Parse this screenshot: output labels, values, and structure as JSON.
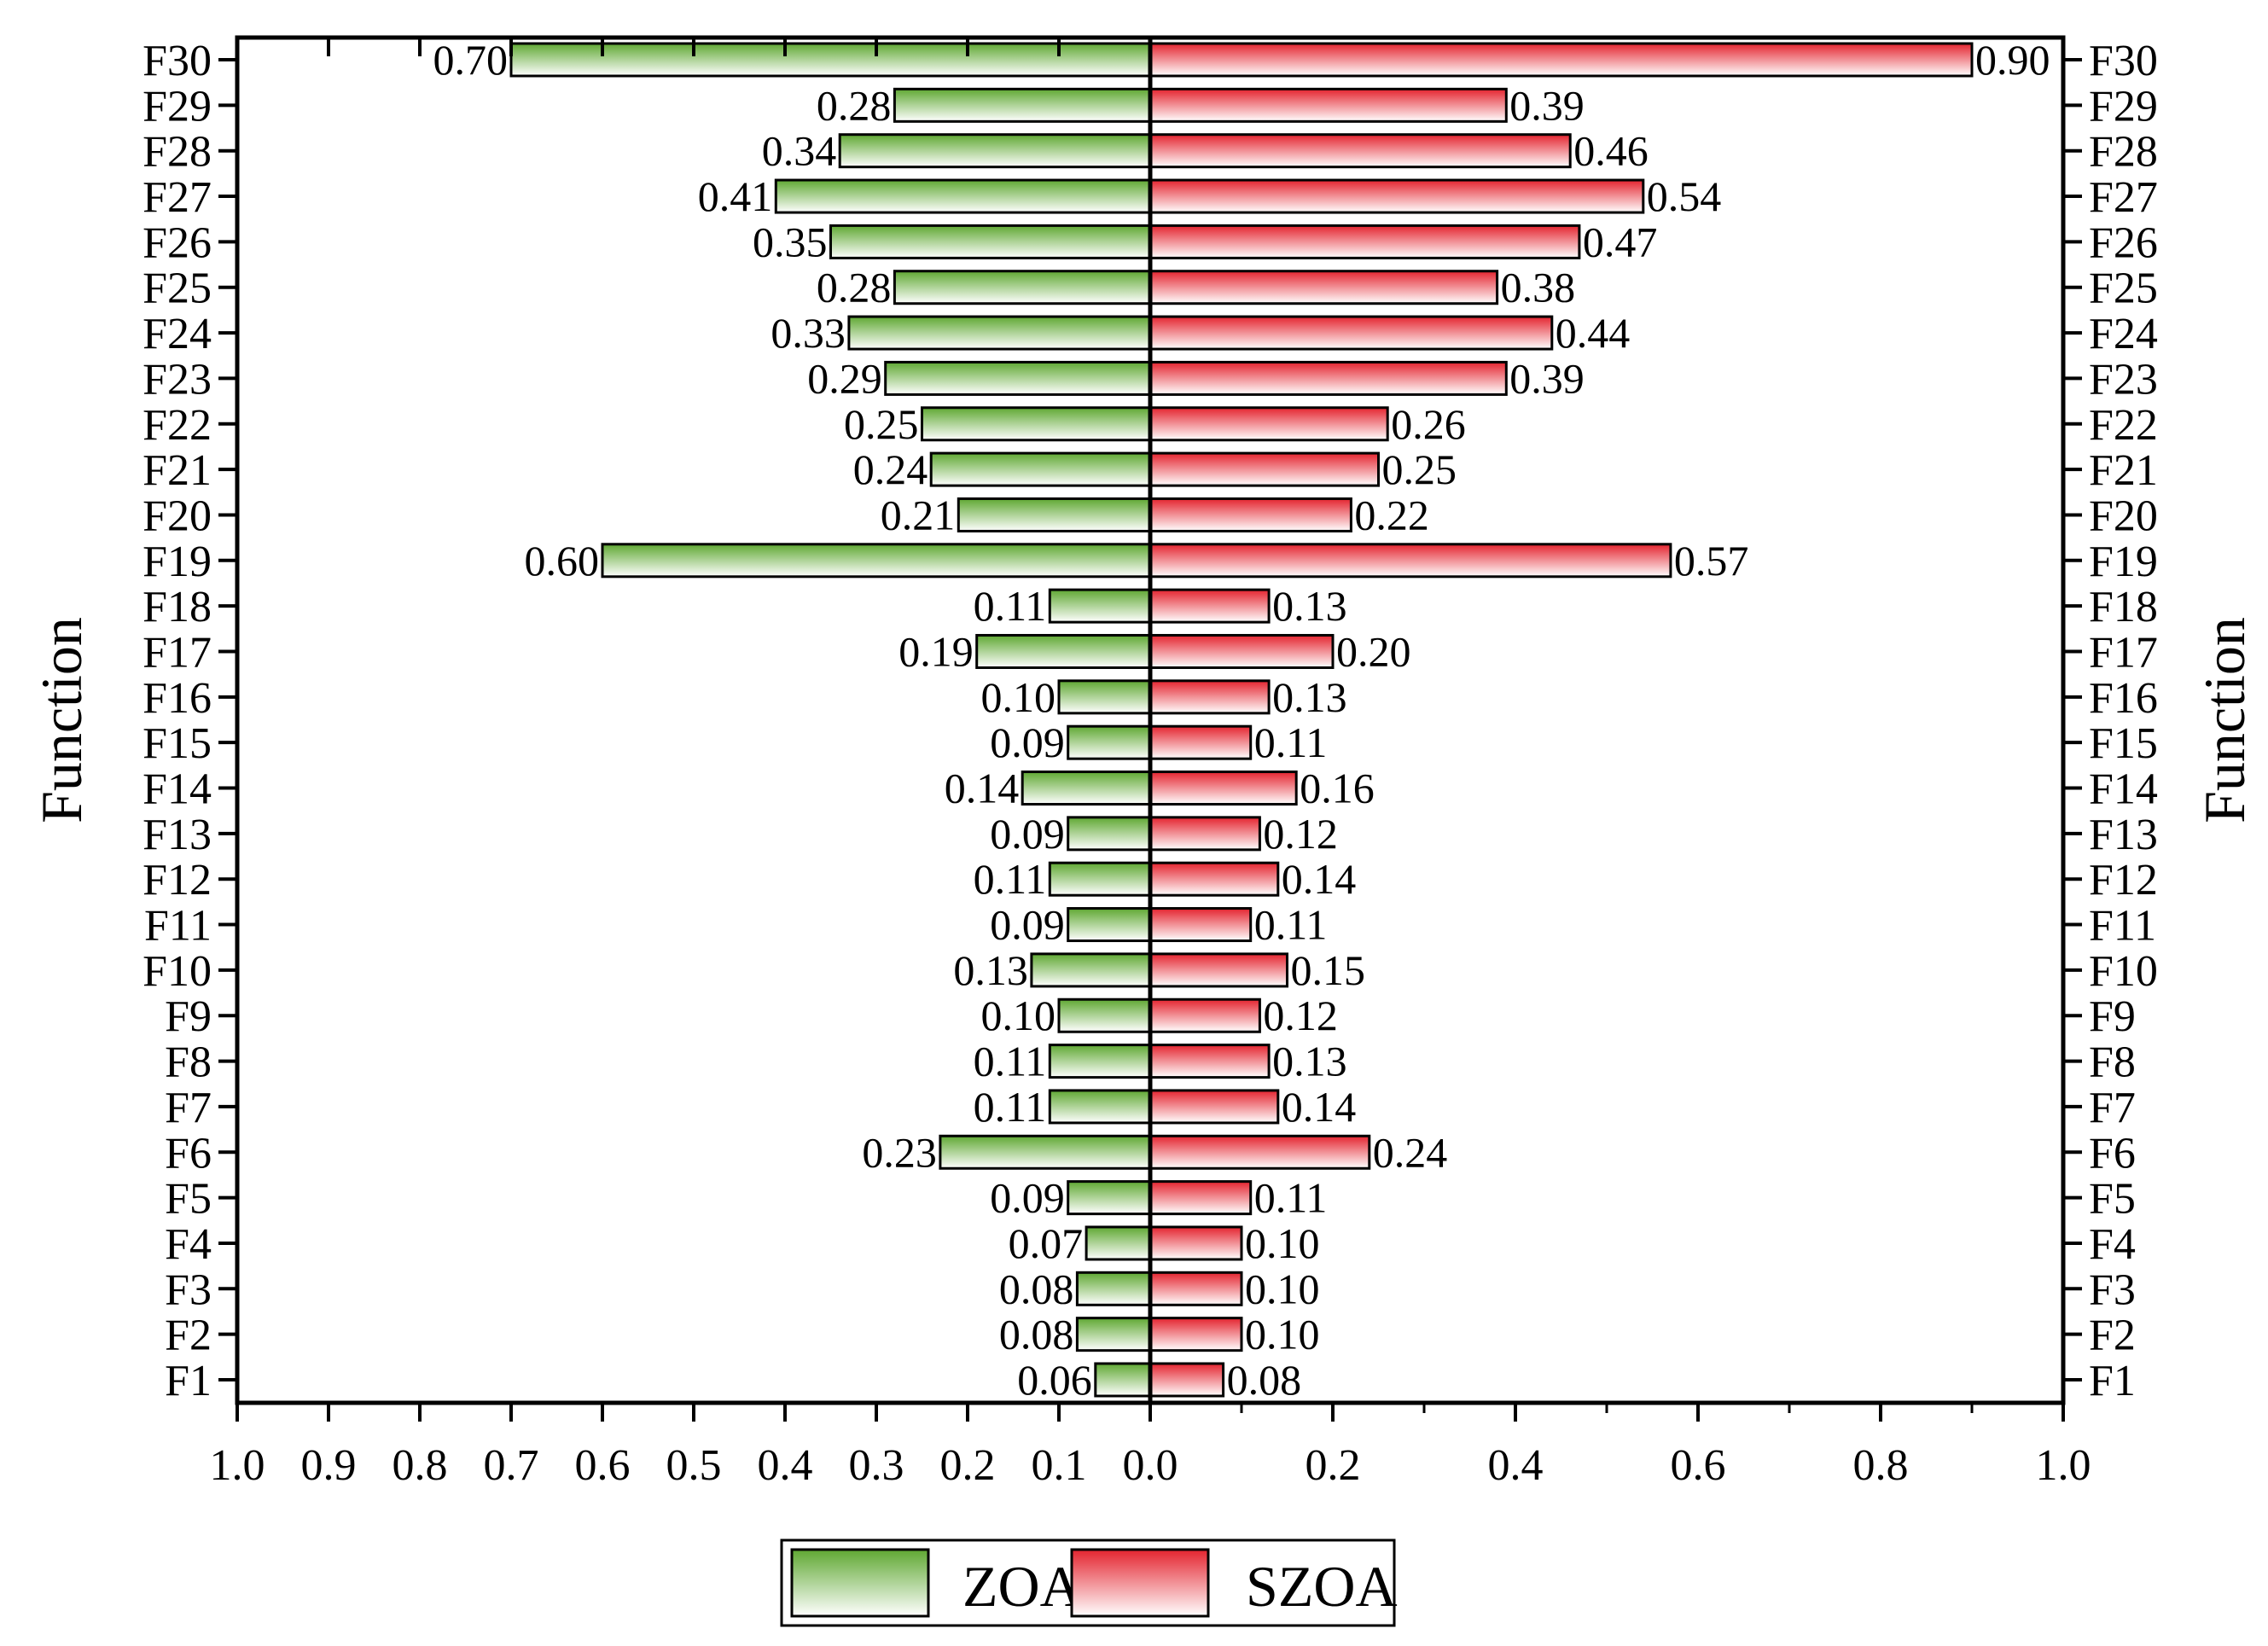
{
  "chart_data": {
    "type": "bar",
    "orientation": "horizontal-diverging",
    "ylabel_left": "Function",
    "ylabel_right": "Function",
    "categories": [
      "F1",
      "F2",
      "F3",
      "F4",
      "F5",
      "F6",
      "F7",
      "F8",
      "F9",
      "F10",
      "F11",
      "F12",
      "F13",
      "F14",
      "F15",
      "F16",
      "F17",
      "F18",
      "F19",
      "F20",
      "F21",
      "F22",
      "F23",
      "F24",
      "F25",
      "F26",
      "F27",
      "F28",
      "F29",
      "F30"
    ],
    "series": [
      {
        "name": "ZOA",
        "side": "left",
        "color_top": "#5fa832",
        "color_bottom": "#ffffff",
        "values": [
          0.06,
          0.08,
          0.08,
          0.07,
          0.09,
          0.23,
          0.11,
          0.11,
          0.1,
          0.13,
          0.09,
          0.11,
          0.09,
          0.14,
          0.09,
          0.1,
          0.19,
          0.11,
          0.6,
          0.21,
          0.24,
          0.25,
          0.29,
          0.33,
          0.28,
          0.35,
          0.41,
          0.34,
          0.28,
          0.7
        ],
        "labels": [
          "0.06",
          "0.08",
          "0.08",
          "0.07",
          "0.09",
          "0.23",
          "0.11",
          "0.11",
          "0.10",
          "0.13",
          "0.09",
          "0.11",
          "0.09",
          "0.14",
          "0.09",
          "0.10",
          "0.19",
          "0.11",
          "0.60",
          "0.21",
          "0.24",
          "0.25",
          "0.29",
          "0.33",
          "0.28",
          "0.35",
          "0.41",
          "0.34",
          "0.28",
          "0.70"
        ]
      },
      {
        "name": "SZOA",
        "side": "right",
        "color_top": "#e4242f",
        "color_bottom": "#ffffff",
        "values": [
          0.08,
          0.1,
          0.1,
          0.1,
          0.11,
          0.24,
          0.14,
          0.13,
          0.12,
          0.15,
          0.11,
          0.14,
          0.12,
          0.16,
          0.11,
          0.13,
          0.2,
          0.13,
          0.57,
          0.22,
          0.25,
          0.26,
          0.39,
          0.44,
          0.38,
          0.47,
          0.54,
          0.46,
          0.39,
          0.9
        ],
        "labels": [
          "0.08",
          "0.10",
          "0.10",
          "0.10",
          "0.11",
          "0.24",
          "0.14",
          "0.13",
          "0.12",
          "0.15",
          "0.11",
          "0.14",
          "0.12",
          "0.16",
          "0.11",
          "0.13",
          "0.20",
          "0.13",
          "0.57",
          "0.22",
          "0.25",
          "0.26",
          "0.39",
          "0.44",
          "0.38",
          "0.47",
          "0.54",
          "0.46",
          "0.39",
          "0.90"
        ]
      }
    ],
    "left_axis": {
      "range": [
        1.0,
        0.0
      ],
      "ticks": [
        1.0,
        0.9,
        0.8,
        0.7,
        0.6,
        0.5,
        0.4,
        0.3,
        0.2,
        0.1,
        0.0
      ],
      "tick_labels": [
        "1.0",
        "0.9",
        "0.8",
        "0.7",
        "0.6",
        "0.5",
        "0.4",
        "0.3",
        "0.2",
        "0.1",
        "0.0"
      ]
    },
    "right_axis": {
      "range": [
        0.0,
        1.0
      ],
      "ticks": [
        0.2,
        0.4,
        0.6,
        0.8,
        1.0
      ],
      "tick_labels": [
        "0.2",
        "0.4",
        "0.6",
        "0.8",
        "1.0"
      ]
    },
    "legend": {
      "position": "bottom-center",
      "entries": [
        "ZOA",
        "SZOA"
      ]
    },
    "grid": false
  }
}
